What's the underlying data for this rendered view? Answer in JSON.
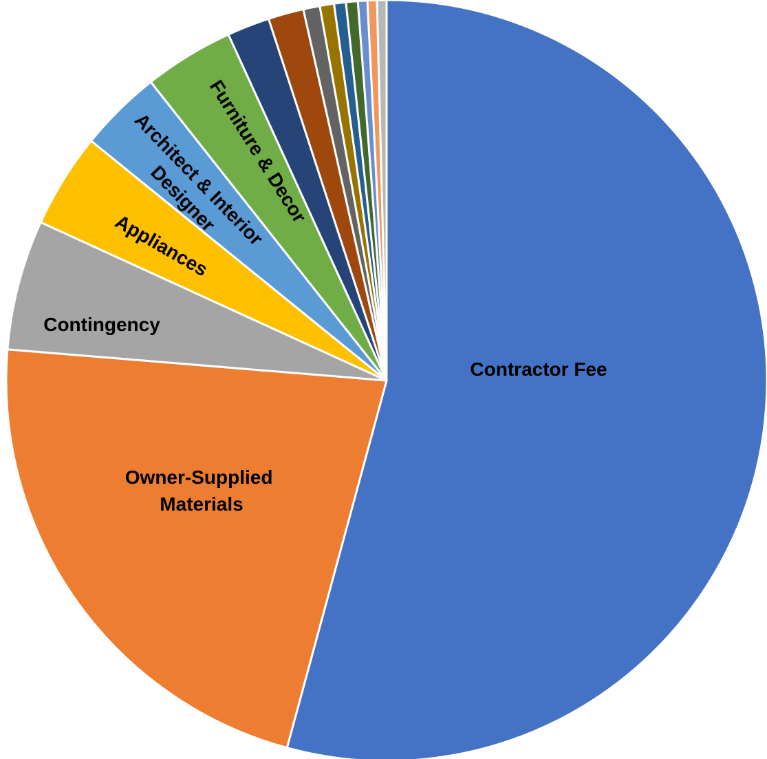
{
  "chart_data": {
    "type": "pie",
    "title": "",
    "start": "12 o'clock",
    "direction": "clockwise",
    "slices": [
      {
        "label": "Contractor Fee",
        "value": 54.0,
        "color": "#4472C4",
        "show_label": true
      },
      {
        "label": "Owner-Supplied Materials",
        "value": 22.0,
        "color": "#ED7D31",
        "show_label": true
      },
      {
        "label": "Contingency",
        "value": 5.5,
        "color": "#A5A5A5",
        "show_label": true
      },
      {
        "label": "Appliances",
        "value": 4.0,
        "color": "#FFC000",
        "show_label": true
      },
      {
        "label": "Architect & Interior Designer",
        "value": 3.5,
        "color": "#5B9BD5",
        "show_label": true
      },
      {
        "label": "Furniture & Decor",
        "value": 3.8,
        "color": "#70AD47",
        "show_label": true
      },
      {
        "label": "",
        "value": 1.8,
        "color": "#264478",
        "show_label": false
      },
      {
        "label": "",
        "value": 1.5,
        "color": "#9E480E",
        "show_label": false
      },
      {
        "label": "",
        "value": 0.7,
        "color": "#636363",
        "show_label": false
      },
      {
        "label": "",
        "value": 0.6,
        "color": "#997300",
        "show_label": false
      },
      {
        "label": "",
        "value": 0.5,
        "color": "#255E91",
        "show_label": false
      },
      {
        "label": "",
        "value": 0.5,
        "color": "#43682B",
        "show_label": false
      },
      {
        "label": "",
        "value": 0.4,
        "color": "#698ED0",
        "show_label": false
      },
      {
        "label": "",
        "value": 0.4,
        "color": "#F1975A",
        "show_label": false
      },
      {
        "label": "",
        "value": 0.4,
        "color": "#B7B7B7",
        "show_label": false
      }
    ]
  }
}
